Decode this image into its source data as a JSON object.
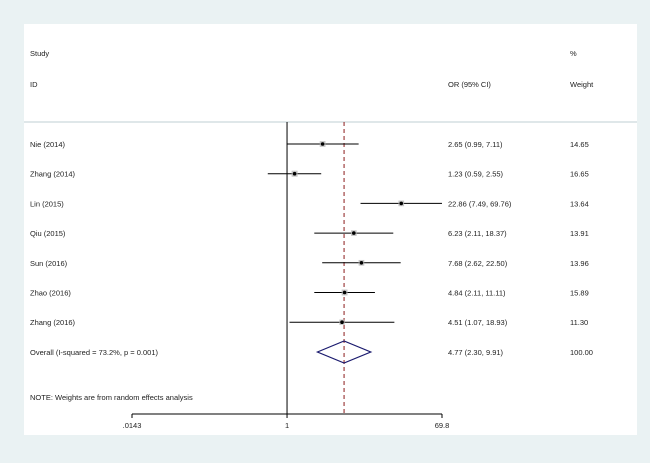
{
  "chart_data": {
    "type": "forest",
    "headers": {
      "study_top": "Study",
      "study_bottom": "ID",
      "or_ci": "OR (95% CI)",
      "weight_top": "%",
      "weight_bottom": "Weight"
    },
    "x_scale": "log",
    "xlim": [
      0.0143,
      69.8
    ],
    "xticks": [
      {
        "value": 0.0143,
        "label": ".0143"
      },
      {
        "value": 1,
        "label": "1"
      },
      {
        "value": 69.8,
        "label": "69.8"
      }
    ],
    "studies": [
      {
        "name": "Nie (2014)",
        "or": 2.65,
        "lo": 0.99,
        "hi": 7.11,
        "or_ci": "2.65 (0.99, 7.11)",
        "weight": "14.65"
      },
      {
        "name": "Zhang (2014)",
        "or": 1.23,
        "lo": 0.59,
        "hi": 2.55,
        "or_ci": "1.23 (0.59, 2.55)",
        "weight": "16.65"
      },
      {
        "name": "Lin (2015)",
        "or": 22.86,
        "lo": 7.49,
        "hi": 69.76,
        "or_ci": "22.86 (7.49, 69.76)",
        "weight": "13.64"
      },
      {
        "name": "Qiu (2015)",
        "or": 6.23,
        "lo": 2.11,
        "hi": 18.37,
        "or_ci": "6.23 (2.11, 18.37)",
        "weight": "13.91"
      },
      {
        "name": "Sun (2016)",
        "or": 7.68,
        "lo": 2.62,
        "hi": 22.5,
        "or_ci": "7.68 (2.62, 22.50)",
        "weight": "13.96"
      },
      {
        "name": "Zhao (2016)",
        "or": 4.84,
        "lo": 2.11,
        "hi": 11.11,
        "or_ci": "4.84 (2.11, 11.11)",
        "weight": "15.89"
      },
      {
        "name": "Zhang (2016)",
        "or": 4.51,
        "lo": 1.07,
        "hi": 18.93,
        "or_ci": "4.51 (1.07, 18.93)",
        "weight": "11.30"
      }
    ],
    "overall": {
      "label": "Overall  (I-squared = 73.2%, p = 0.001)",
      "or": 4.77,
      "lo": 2.3,
      "hi": 9.91,
      "or_ci": "4.77 (2.30, 9.91)",
      "weight": "100.00"
    },
    "note": "NOTE: Weights are from random effects analysis",
    "colors": {
      "background": "#eaf2f3",
      "panel": "#ffffff",
      "ci_line": "#000000",
      "reference_line": "#000000",
      "overall_line": "#8b1a1a",
      "diamond": "#1a1a6e",
      "point": "#000000"
    }
  }
}
